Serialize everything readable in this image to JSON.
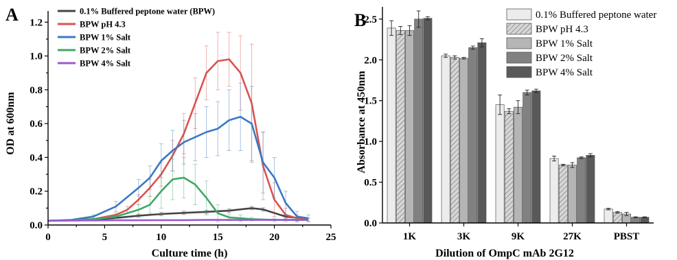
{
  "panel_a": {
    "letter": "A",
    "xlabel": "Culture time (h)",
    "ylabel": "OD at 600nm",
    "x_ticks": [
      "0",
      "5",
      "10",
      "15",
      "20",
      "25"
    ],
    "y_ticks": [
      "0.0",
      "0.2",
      "0.4",
      "0.6",
      "0.8",
      "1.0",
      "1.2"
    ],
    "legend": [
      "0.1% Buffered peptone water (BPW)",
      "BPW pH 4.3",
      "BPW 1% Salt",
      "BPW 2% Salt",
      "BPW 4% Salt"
    ]
  },
  "panel_b": {
    "letter": "B",
    "xlabel": "Dilution of OmpC mAb 2G12",
    "ylabel": "Absorbance at 450nm",
    "x_ticks": [
      "1K",
      "3K",
      "9K",
      "27K",
      "PBST"
    ],
    "y_ticks": [
      "0.0",
      "0.5",
      "1.0",
      "1.5",
      "2.0",
      "2.5"
    ],
    "legend": [
      "0.1% Buffered peptone water",
      "BPW pH 4.3",
      "BPW 1% Salt",
      "BPW 2% Salt",
      "BPW 4% Salt"
    ]
  },
  "chart_data": [
    {
      "type": "line",
      "xlabel": "Culture time (h)",
      "ylabel": "OD at 600nm",
      "xlim": [
        0,
        25
      ],
      "ylim": [
        0,
        1.25
      ],
      "grid": false,
      "legend_position": "top-left",
      "series": [
        {
          "name": "0.1% Buffered peptone water (BPW)",
          "color": "#444444",
          "x": [
            0,
            2,
            4,
            6,
            8,
            10,
            12,
            14,
            16,
            18,
            19,
            21,
            23
          ],
          "y": [
            0.025,
            0.028,
            0.032,
            0.042,
            0.055,
            0.065,
            0.072,
            0.078,
            0.085,
            0.1,
            0.092,
            0.05,
            0.035
          ],
          "err": [
            0.005,
            0.005,
            0.005,
            0.005,
            0.01,
            0.01,
            0.01,
            0.01,
            0.01,
            0.01,
            0.01,
            0.01,
            0.005
          ]
        },
        {
          "name": "BPW pH 4.3",
          "color": "#d9534f",
          "x": [
            0,
            2,
            4,
            6,
            7,
            8,
            9,
            10,
            11,
            12,
            13,
            14,
            15,
            16,
            17,
            18,
            19,
            20,
            21,
            22,
            23
          ],
          "y": [
            0.025,
            0.028,
            0.035,
            0.06,
            0.09,
            0.15,
            0.22,
            0.3,
            0.41,
            0.54,
            0.72,
            0.9,
            0.97,
            0.98,
            0.9,
            0.72,
            0.35,
            0.15,
            0.06,
            0.04,
            0.03
          ],
          "err": [
            0.005,
            0.005,
            0.005,
            0.01,
            0.02,
            0.03,
            0.05,
            0.07,
            0.09,
            0.12,
            0.15,
            0.16,
            0.17,
            0.16,
            0.22,
            0.35,
            0.2,
            0.1,
            0.04,
            0.02,
            0.01
          ]
        },
        {
          "name": "BPW 1% Salt",
          "color": "#3a78c4",
          "x": [
            0,
            2,
            4,
            6,
            8,
            9,
            10,
            11,
            12,
            13,
            14,
            15,
            16,
            17,
            18,
            19,
            20,
            21,
            22,
            23
          ],
          "y": [
            0.025,
            0.03,
            0.05,
            0.11,
            0.22,
            0.28,
            0.38,
            0.44,
            0.49,
            0.52,
            0.55,
            0.57,
            0.62,
            0.64,
            0.6,
            0.37,
            0.28,
            0.13,
            0.05,
            0.04
          ],
          "err": [
            0.005,
            0.005,
            0.01,
            0.03,
            0.05,
            0.07,
            0.1,
            0.12,
            0.13,
            0.14,
            0.15,
            0.16,
            0.18,
            0.2,
            0.22,
            0.18,
            0.12,
            0.07,
            0.03,
            0.02
          ]
        },
        {
          "name": "BPW 2% Salt",
          "color": "#3fa667",
          "x": [
            0,
            2,
            4,
            6,
            8,
            9,
            10,
            11,
            12,
            13,
            14,
            15,
            16,
            17,
            18,
            20,
            22,
            23
          ],
          "y": [
            0.025,
            0.028,
            0.035,
            0.05,
            0.09,
            0.12,
            0.2,
            0.27,
            0.28,
            0.24,
            0.16,
            0.07,
            0.045,
            0.04,
            0.035,
            0.03,
            0.03,
            0.03
          ],
          "err": [
            0.005,
            0.005,
            0.005,
            0.01,
            0.03,
            0.05,
            0.1,
            0.12,
            0.12,
            0.12,
            0.1,
            0.05,
            0.02,
            0.02,
            0.01,
            0.01,
            0.01,
            0.01
          ]
        },
        {
          "name": "BPW 4% Salt",
          "color": "#9b59d0",
          "x": [
            0,
            2,
            4,
            6,
            8,
            10,
            12,
            14,
            16,
            18,
            20,
            22,
            23
          ],
          "y": [
            0.025,
            0.026,
            0.027,
            0.028,
            0.028,
            0.029,
            0.029,
            0.03,
            0.03,
            0.03,
            0.03,
            0.03,
            0.03
          ],
          "err": [
            0.003,
            0.003,
            0.003,
            0.003,
            0.003,
            0.003,
            0.003,
            0.003,
            0.003,
            0.003,
            0.003,
            0.003,
            0.003
          ]
        }
      ]
    },
    {
      "type": "bar",
      "xlabel": "Dilution of OmpC mAb 2G12",
      "ylabel": "Absorbance at 450nm",
      "ylim": [
        0,
        2.65
      ],
      "grid": false,
      "legend_position": "top-right",
      "categories": [
        "1K",
        "3K",
        "9K",
        "27K",
        "PBST"
      ],
      "series": [
        {
          "name": "0.1% Buffered peptone water",
          "color": "#ececec",
          "pattern": "none",
          "values": [
            2.39,
            2.05,
            1.45,
            0.79,
            0.17
          ],
          "err": [
            0.09,
            0.02,
            0.12,
            0.03,
            0.01
          ]
        },
        {
          "name": "BPW pH 4.3",
          "color": "#d6d6d6",
          "pattern": "hatch",
          "values": [
            2.36,
            2.03,
            1.37,
            0.71,
            0.13
          ],
          "err": [
            0.05,
            0.02,
            0.03,
            0.01,
            0.01
          ]
        },
        {
          "name": "BPW 1% Salt",
          "color": "#b5b5b5",
          "pattern": "none",
          "values": [
            2.36,
            2.02,
            1.42,
            0.71,
            0.11
          ],
          "err": [
            0.06,
            0.01,
            0.08,
            0.03,
            0.02
          ]
        },
        {
          "name": "BPW 2% Salt",
          "color": "#818181",
          "pattern": "none",
          "values": [
            2.5,
            2.15,
            1.6,
            0.8,
            0.07
          ],
          "err": [
            0.1,
            0.02,
            0.03,
            0.01,
            0.005
          ]
        },
        {
          "name": "BPW 4% Salt",
          "color": "#595959",
          "pattern": "none",
          "values": [
            2.51,
            2.21,
            1.62,
            0.83,
            0.07
          ],
          "err": [
            0.02,
            0.05,
            0.02,
            0.02,
            0.005
          ]
        }
      ]
    }
  ]
}
